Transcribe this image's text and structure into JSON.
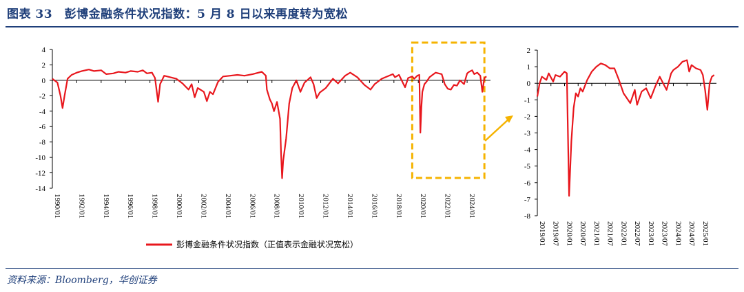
{
  "header": {
    "title": "图表 33　彭博金融条件状况指数：5 月 8 日以来再度转为宽松"
  },
  "footer": {
    "source": "资料来源：Bloomberg，华创证券"
  },
  "colors": {
    "series": "#e8171d",
    "highlight": "#f5b301",
    "text": "#1f3f7a"
  },
  "chart_data": [
    {
      "type": "line",
      "title": "",
      "legend": {
        "position": "bottom-center",
        "label": "彭博金融条件状况指数（正值表示金融状况宽松）"
      },
      "y_axis": {
        "range": [
          -14,
          4
        ],
        "ticks": [
          "4",
          "2",
          "0",
          "-2",
          "-4",
          "-6",
          "-8",
          "-10",
          "-12",
          "-14"
        ]
      },
      "x_axis": {
        "range": [
          "1990-01",
          "2025-12"
        ],
        "ticks": [
          "1990/01",
          "1992/01",
          "1994/01",
          "1996/01",
          "1998/01",
          "2000/01",
          "2002/01",
          "2004/01",
          "2006/01",
          "2008/01",
          "2010/01",
          "2012/01",
          "2014/01",
          "2016/01",
          "2018/01",
          "2020/01",
          "2022/01",
          "2024/01"
        ]
      },
      "grid": false,
      "highlight_box": {
        "from": "2019-07",
        "to": "2025-06",
        "style": "dashed"
      },
      "series": [
        {
          "name": "彭博金融条件状况指数（正值表示金融状况宽松）",
          "points": [
            [
              "1990-01",
              0.2
            ],
            [
              "1990-06",
              -0.3
            ],
            [
              "1990-09",
              -2.0
            ],
            [
              "1990-11",
              -3.6
            ],
            [
              "1991-01",
              -2.0
            ],
            [
              "1991-04",
              0.2
            ],
            [
              "1991-08",
              0.7
            ],
            [
              "1992-01",
              1.0
            ],
            [
              "1992-06",
              1.2
            ],
            [
              "1993-01",
              1.4
            ],
            [
              "1993-06",
              1.2
            ],
            [
              "1994-01",
              1.3
            ],
            [
              "1994-06",
              0.8
            ],
            [
              "1995-01",
              0.9
            ],
            [
              "1995-06",
              1.1
            ],
            [
              "1996-01",
              1.0
            ],
            [
              "1996-06",
              1.2
            ],
            [
              "1997-01",
              1.1
            ],
            [
              "1997-06",
              1.3
            ],
            [
              "1997-10",
              0.9
            ],
            [
              "1998-03",
              1.0
            ],
            [
              "1998-06",
              0.3
            ],
            [
              "1998-09",
              -2.8
            ],
            [
              "1998-11",
              -0.5
            ],
            [
              "1999-03",
              0.6
            ],
            [
              "1999-09",
              0.4
            ],
            [
              "2000-03",
              0.2
            ],
            [
              "2000-09",
              -0.4
            ],
            [
              "2001-03",
              -1.2
            ],
            [
              "2001-06",
              -0.5
            ],
            [
              "2001-09",
              -2.2
            ],
            [
              "2001-12",
              -1.0
            ],
            [
              "2002-06",
              -1.5
            ],
            [
              "2002-09",
              -2.7
            ],
            [
              "2002-12",
              -1.5
            ],
            [
              "2003-03",
              -1.8
            ],
            [
              "2003-08",
              -0.2
            ],
            [
              "2004-01",
              0.5
            ],
            [
              "2004-08",
              0.6
            ],
            [
              "2005-03",
              0.7
            ],
            [
              "2005-10",
              0.6
            ],
            [
              "2006-06",
              0.8
            ],
            [
              "2007-03",
              1.1
            ],
            [
              "2007-07",
              0.6
            ],
            [
              "2007-08",
              -1.2
            ],
            [
              "2007-11",
              -2.5
            ],
            [
              "2008-01",
              -3.0
            ],
            [
              "2008-03",
              -4.0
            ],
            [
              "2008-06",
              -2.8
            ],
            [
              "2008-09",
              -5.0
            ],
            [
              "2008-10",
              -9.5
            ],
            [
              "2008-11",
              -12.7
            ],
            [
              "2008-12",
              -10.5
            ],
            [
              "2009-03",
              -7.5
            ],
            [
              "2009-06",
              -3.0
            ],
            [
              "2009-09",
              -1.0
            ],
            [
              "2010-01",
              0.0
            ],
            [
              "2010-05",
              -1.5
            ],
            [
              "2010-09",
              -0.3
            ],
            [
              "2011-03",
              0.4
            ],
            [
              "2011-06",
              -0.5
            ],
            [
              "2011-09",
              -2.3
            ],
            [
              "2011-12",
              -1.6
            ],
            [
              "2012-06",
              -1.0
            ],
            [
              "2013-01",
              0.2
            ],
            [
              "2013-06",
              -0.4
            ],
            [
              "2014-01",
              0.6
            ],
            [
              "2014-06",
              1.0
            ],
            [
              "2015-01",
              0.4
            ],
            [
              "2015-08",
              -0.6
            ],
            [
              "2016-02",
              -1.2
            ],
            [
              "2016-06",
              -0.5
            ],
            [
              "2017-01",
              0.2
            ],
            [
              "2017-12",
              0.8
            ],
            [
              "2018-02",
              0.4
            ],
            [
              "2018-06",
              0.7
            ],
            [
              "2018-12",
              -0.9
            ],
            [
              "2019-03",
              0.3
            ],
            [
              "2019-07",
              0.5
            ],
            [
              "2019-09",
              0.2
            ],
            [
              "2019-12",
              0.6
            ],
            [
              "2020-02",
              0.7
            ],
            [
              "2020-03",
              -6.8
            ],
            [
              "2020-04",
              -3.5
            ],
            [
              "2020-05",
              -1.5
            ],
            [
              "2020-07",
              -0.5
            ],
            [
              "2020-09",
              -0.2
            ],
            [
              "2020-12",
              0.4
            ],
            [
              "2021-03",
              0.7
            ],
            [
              "2021-06",
              1.0
            ],
            [
              "2021-09",
              0.9
            ],
            [
              "2021-12",
              0.8
            ],
            [
              "2022-03",
              -0.5
            ],
            [
              "2022-06",
              -1.1
            ],
            [
              "2022-09",
              -1.2
            ],
            [
              "2022-12",
              -0.6
            ],
            [
              "2023-03",
              -0.7
            ],
            [
              "2023-06",
              0.0
            ],
            [
              "2023-10",
              -0.5
            ],
            [
              "2024-01",
              0.9
            ],
            [
              "2024-03",
              1.1
            ],
            [
              "2024-06",
              1.3
            ],
            [
              "2024-08",
              0.8
            ],
            [
              "2024-11",
              1.0
            ],
            [
              "2025-02",
              0.6
            ],
            [
              "2025-04",
              -1.5
            ],
            [
              "2025-06",
              0.3
            ],
            [
              "2025-08",
              0.5
            ]
          ]
        }
      ]
    },
    {
      "type": "line",
      "title": "",
      "y_axis": {
        "range": [
          -8,
          2
        ],
        "ticks": [
          "2",
          "1",
          "0",
          "-1",
          "-2",
          "-3",
          "-4",
          "-5",
          "-6",
          "-7",
          "-8"
        ]
      },
      "x_axis": {
        "range": [
          "2019-01",
          "2025-08"
        ],
        "ticks": [
          "2019/01",
          "2019/07",
          "2020/01",
          "2020/07",
          "2021/01",
          "2021/07",
          "2022/01",
          "2022/07",
          "2023/01",
          "2023/07",
          "2024/01",
          "2024/07",
          "2025/01"
        ]
      },
      "grid": false,
      "series": [
        {
          "name": "彭博金融条件状况指数（正值表示金融状况宽松）",
          "points": [
            [
              "2019-01",
              -0.8
            ],
            [
              "2019-02",
              0.0
            ],
            [
              "2019-03",
              0.4
            ],
            [
              "2019-05",
              0.2
            ],
            [
              "2019-06",
              0.6
            ],
            [
              "2019-08",
              0.1
            ],
            [
              "2019-09",
              0.5
            ],
            [
              "2019-11",
              0.4
            ],
            [
              "2020-01",
              0.7
            ],
            [
              "2020-02",
              0.6
            ],
            [
              "2020-03",
              -6.8
            ],
            [
              "2020-04",
              -3.5
            ],
            [
              "2020-05",
              -1.5
            ],
            [
              "2020-06",
              -0.6
            ],
            [
              "2020-07",
              -0.8
            ],
            [
              "2020-08",
              -0.3
            ],
            [
              "2020-09",
              -0.5
            ],
            [
              "2020-11",
              0.2
            ],
            [
              "2021-01",
              0.7
            ],
            [
              "2021-03",
              1.0
            ],
            [
              "2021-05",
              1.2
            ],
            [
              "2021-07",
              1.1
            ],
            [
              "2021-09",
              0.9
            ],
            [
              "2021-11",
              0.9
            ],
            [
              "2022-01",
              0.2
            ],
            [
              "2022-03",
              -0.6
            ],
            [
              "2022-05",
              -1.0
            ],
            [
              "2022-06",
              -1.2
            ],
            [
              "2022-08",
              -0.4
            ],
            [
              "2022-09",
              -1.3
            ],
            [
              "2022-11",
              -0.5
            ],
            [
              "2023-01",
              -0.3
            ],
            [
              "2023-03",
              -0.9
            ],
            [
              "2023-05",
              -0.2
            ],
            [
              "2023-07",
              0.4
            ],
            [
              "2023-10",
              -0.4
            ],
            [
              "2023-12",
              0.6
            ],
            [
              "2024-01",
              0.8
            ],
            [
              "2024-03",
              1.0
            ],
            [
              "2024-05",
              1.3
            ],
            [
              "2024-07",
              1.4
            ],
            [
              "2024-08",
              0.7
            ],
            [
              "2024-09",
              1.1
            ],
            [
              "2024-11",
              0.9
            ],
            [
              "2025-01",
              0.8
            ],
            [
              "2025-02",
              0.5
            ],
            [
              "2025-03",
              -0.4
            ],
            [
              "2025-04",
              -1.6
            ],
            [
              "2025-05",
              0.0
            ],
            [
              "2025-06",
              0.4
            ],
            [
              "2025-07",
              0.5
            ]
          ]
        }
      ]
    }
  ]
}
